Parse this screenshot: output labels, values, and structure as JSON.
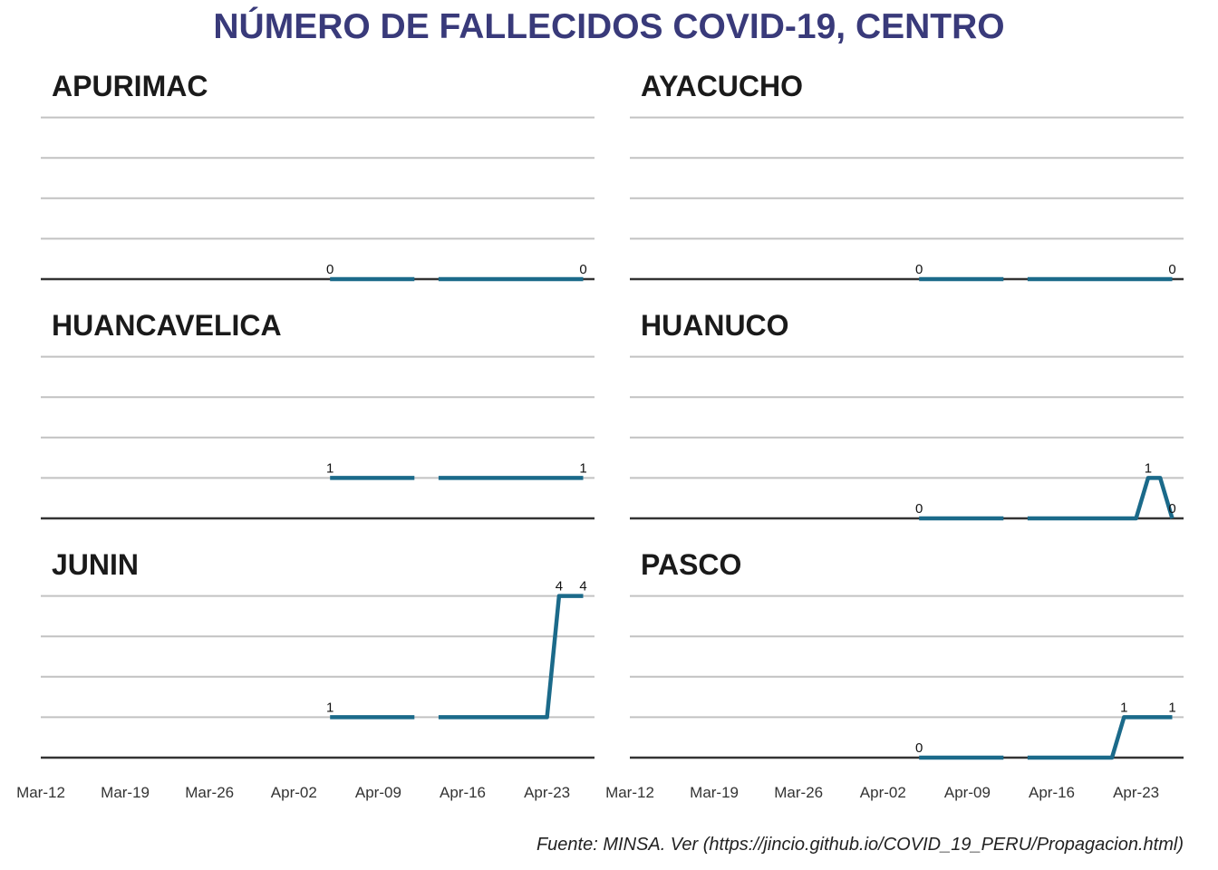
{
  "title": "NÚMERO DE FALLECIDOS COVID-19, CENTRO",
  "caption": "Fuente: MINSA. Ver (https://jincio.github.io/COVID_19_PERU/Propagacion.html)",
  "colors": {
    "title": "#393a7a",
    "line": "#1b6a8a",
    "grid": "#c2c2c2",
    "baseline": "#333333"
  },
  "chart_data": {
    "type": "line",
    "layout": "small-multiples 2x3",
    "x_ticks": [
      "Mar-12",
      "Mar-19",
      "Mar-26",
      "Apr-02",
      "Apr-09",
      "Apr-16",
      "Apr-23"
    ],
    "grid": true,
    "panels": [
      {
        "name": "APURIMAC",
        "ylim": [
          0,
          4
        ],
        "segments": [
          [
            [
              "Apr-05",
              0
            ],
            [
              "Apr-12",
              0
            ]
          ],
          [
            [
              "Apr-14",
              0
            ],
            [
              "Apr-26",
              0
            ]
          ]
        ],
        "labels": [
          {
            "x": "Apr-05",
            "y": 0,
            "text": "0"
          },
          {
            "x": "Apr-26",
            "y": 0,
            "text": "0"
          }
        ]
      },
      {
        "name": "AYACUCHO",
        "ylim": [
          0,
          4
        ],
        "segments": [
          [
            [
              "Apr-05",
              0
            ],
            [
              "Apr-12",
              0
            ]
          ],
          [
            [
              "Apr-14",
              0
            ],
            [
              "Apr-26",
              0
            ]
          ]
        ],
        "labels": [
          {
            "x": "Apr-05",
            "y": 0,
            "text": "0"
          },
          {
            "x": "Apr-26",
            "y": 0,
            "text": "0"
          }
        ]
      },
      {
        "name": "HUANCAVELICA",
        "ylim": [
          0,
          4
        ],
        "segments": [
          [
            [
              "Apr-05",
              1
            ],
            [
              "Apr-12",
              1
            ]
          ],
          [
            [
              "Apr-14",
              1
            ],
            [
              "Apr-26",
              1
            ]
          ]
        ],
        "labels": [
          {
            "x": "Apr-05",
            "y": 1,
            "text": "1"
          },
          {
            "x": "Apr-26",
            "y": 1,
            "text": "1"
          }
        ]
      },
      {
        "name": "HUANUCO",
        "ylim": [
          0,
          4
        ],
        "segments": [
          [
            [
              "Apr-05",
              0
            ],
            [
              "Apr-12",
              0
            ]
          ],
          [
            [
              "Apr-14",
              0
            ],
            [
              "Apr-23",
              0
            ],
            [
              "Apr-24",
              1
            ],
            [
              "Apr-25",
              1
            ],
            [
              "Apr-26",
              0
            ]
          ]
        ],
        "labels": [
          {
            "x": "Apr-05",
            "y": 0,
            "text": "0"
          },
          {
            "x": "Apr-24",
            "y": 1,
            "text": "1"
          },
          {
            "x": "Apr-26",
            "y": 0,
            "text": "0"
          }
        ]
      },
      {
        "name": "JUNIN",
        "ylim": [
          0,
          4
        ],
        "segments": [
          [
            [
              "Apr-05",
              1
            ],
            [
              "Apr-12",
              1
            ]
          ],
          [
            [
              "Apr-14",
              1
            ],
            [
              "Apr-23",
              1
            ],
            [
              "Apr-24",
              4
            ],
            [
              "Apr-26",
              4
            ]
          ]
        ],
        "labels": [
          {
            "x": "Apr-05",
            "y": 1,
            "text": "1"
          },
          {
            "x": "Apr-24",
            "y": 4,
            "text": "4"
          },
          {
            "x": "Apr-26",
            "y": 4,
            "text": "4"
          }
        ]
      },
      {
        "name": "PASCO",
        "ylim": [
          0,
          4
        ],
        "segments": [
          [
            [
              "Apr-05",
              0
            ],
            [
              "Apr-12",
              0
            ]
          ],
          [
            [
              "Apr-14",
              0
            ],
            [
              "Apr-21",
              0
            ],
            [
              "Apr-22",
              1
            ],
            [
              "Apr-26",
              1
            ]
          ]
        ],
        "labels": [
          {
            "x": "Apr-05",
            "y": 0,
            "text": "0"
          },
          {
            "x": "Apr-22",
            "y": 1,
            "text": "1"
          },
          {
            "x": "Apr-26",
            "y": 1,
            "text": "1"
          }
        ]
      }
    ]
  }
}
